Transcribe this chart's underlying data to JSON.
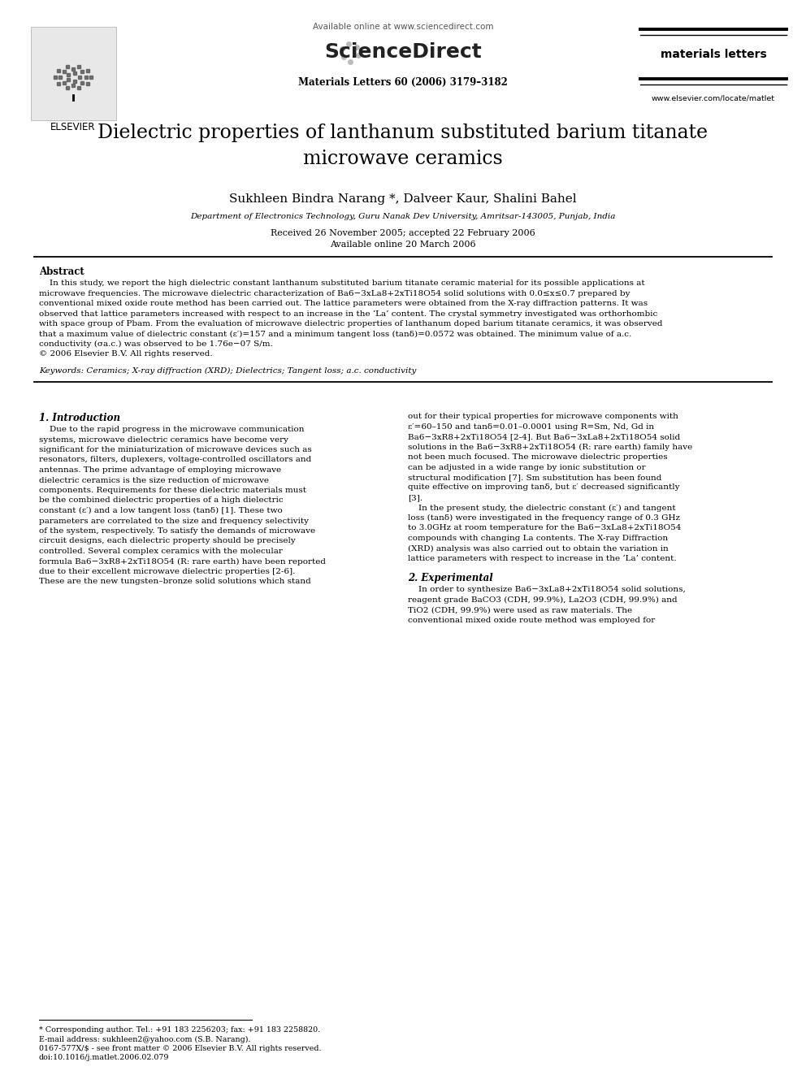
{
  "bg_color": "#ffffff",
  "title": "Dielectric properties of lanthanum substituted barium titanate\nmicrowave ceramics",
  "authors": "Sukhleen Bindra Narang *, Dalveer Kaur, Shalini Bahel",
  "affiliation": "Department of Electronics Technology, Guru Nanak Dev University, Amritsar-143005, Punjab, India",
  "received": "Received 26 November 2005; accepted 22 February 2006",
  "available": "Available online 20 March 2006",
  "journal_header_center": "Available online at www.sciencedirect.com",
  "sciencedirect_text": "ScienceDirect",
  "journal_name": "materials letters",
  "journal_info": "Materials Letters 60 (2006) 3179–3182",
  "journal_url": "www.elsevier.com/locate/matlet",
  "elsevier_text": "ELSEVIER",
  "abstract_title": "Abstract",
  "abstract_lines": [
    "    In this study, we report the high dielectric constant lanthanum substituted barium titanate ceramic material for its possible applications at",
    "microwave frequencies. The microwave dielectric characterization of Ba6−3xLa8+2xTi18O54 solid solutions with 0.0≤x≤0.7 prepared by",
    "conventional mixed oxide route method has been carried out. The lattice parameters were obtained from the X-ray diffraction patterns. It was",
    "observed that lattice parameters increased with respect to an increase in the ‘La’ content. The crystal symmetry investigated was orthorhombic",
    "with space group of Pbam. From the evaluation of microwave dielectric properties of lanthanum doped barium titanate ceramics, it was observed",
    "that a maximum value of dielectric constant (ε′)=157 and a minimum tangent loss (tanδ)=0.0572 was obtained. The minimum value of a.c.",
    "conductivity (σa.c.) was observed to be 1.76e−07 S/m.",
    "© 2006 Elsevier B.V. All rights reserved."
  ],
  "keywords": "Keywords: Ceramics; X-ray diffraction (XRD); Dielectrics; Tangent loss; a.c. conductivity",
  "section1_title": "1. Introduction",
  "col1_lines": [
    "    Due to the rapid progress in the microwave communication",
    "systems, microwave dielectric ceramics have become very",
    "significant for the miniaturization of microwave devices such as",
    "resonators, filters, duplexers, voltage-controlled oscillators and",
    "antennas. The prime advantage of employing microwave",
    "dielectric ceramics is the size reduction of microwave",
    "components. Requirements for these dielectric materials must",
    "be the combined dielectric properties of a high dielectric",
    "constant (ε′) and a low tangent loss (tanδ) [1]. These two",
    "parameters are correlated to the size and frequency selectivity",
    "of the system, respectively. To satisfy the demands of microwave",
    "circuit designs, each dielectric property should be precisely",
    "controlled. Several complex ceramics with the molecular",
    "formula Ba6−3xR8+2xTi18O54 (R: rare earth) have been reported",
    "due to their excellent microwave dielectric properties [2-6].",
    "These are the new tungsten–bronze solid solutions which stand"
  ],
  "col2_lines": [
    "out for their typical properties for microwave components with",
    "ε′=60–150 and tanδ=0.01–0.0001 using R=Sm, Nd, Gd in",
    "Ba6−3xR8+2xTi18O54 [2-4]. But Ba6−3xLa8+2xTi18O54 solid",
    "solutions in the Ba6−3xR8+2xTi18O54 (R: rare earth) family have",
    "not been much focused. The microwave dielectric properties",
    "can be adjusted in a wide range by ionic substitution or",
    "structural modification [7]. Sm substitution has been found",
    "quite effective on improving tanδ, but ε′ decreased significantly",
    "[3].",
    "    In the present study, the dielectric constant (ε′) and tangent",
    "loss (tanδ) were investigated in the frequency range of 0.3 GHz",
    "to 3.0GHz at room temperature for the Ba6−3xLa8+2xTi18O54",
    "compounds with changing La contents. The X-ray Diffraction",
    "(XRD) analysis was also carried out to obtain the variation in",
    "lattice parameters with respect to increase in the ‘La’ content."
  ],
  "section2_title": "2. Experimental",
  "col2_sec2_lines": [
    "    In order to synthesize Ba6−3xLa8+2xTi18O54 solid solutions,",
    "reagent grade BaCO3 (CDH, 99.9%), La2O3 (CDH, 99.9%) and",
    "TiO2 (CDH, 99.9%) were used as raw materials. The",
    "conventional mixed oxide route method was employed for"
  ],
  "footnotes": [
    "* Corresponding author. Tel.: +91 183 2256203; fax: +91 183 2258820.",
    "E-mail address: sukhleen2@yahoo.com (S.B. Narang).",
    "0167-577X/$ - see front matter © 2006 Elsevier B.V. All rights reserved.",
    "doi:10.1016/j.matlet.2006.02.079"
  ]
}
